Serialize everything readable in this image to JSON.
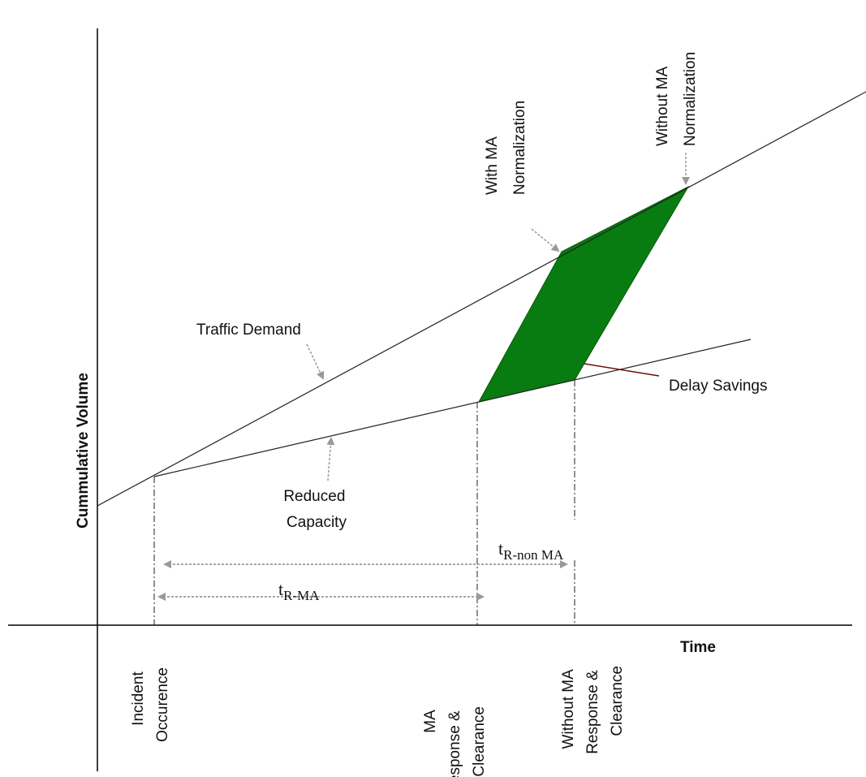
{
  "axes": {
    "y_label": "Cummulative Volume",
    "x_label": "Time"
  },
  "annotations": {
    "traffic_demand": "Traffic Demand",
    "reduced_capacity": [
      "Reduced",
      "Capacity"
    ],
    "with_ma_normalization": [
      "With MA",
      "Normalization"
    ],
    "without_ma_normalization": [
      "Without MA",
      "Normalization"
    ],
    "delay_savings": "Delay Savings",
    "t_r_ma": {
      "symbol": "t",
      "subscript": "R-MA"
    },
    "t_r_non_ma": {
      "symbol": "t",
      "subscript": "R-non MA"
    }
  },
  "x_labels": {
    "incident": [
      "Incident",
      "Occurence"
    ],
    "ma_clearance": [
      "MA",
      "Response &",
      "Clearance"
    ],
    "non_ma_clearance": [
      "Without MA",
      "Response &",
      "Clearance"
    ]
  }
}
